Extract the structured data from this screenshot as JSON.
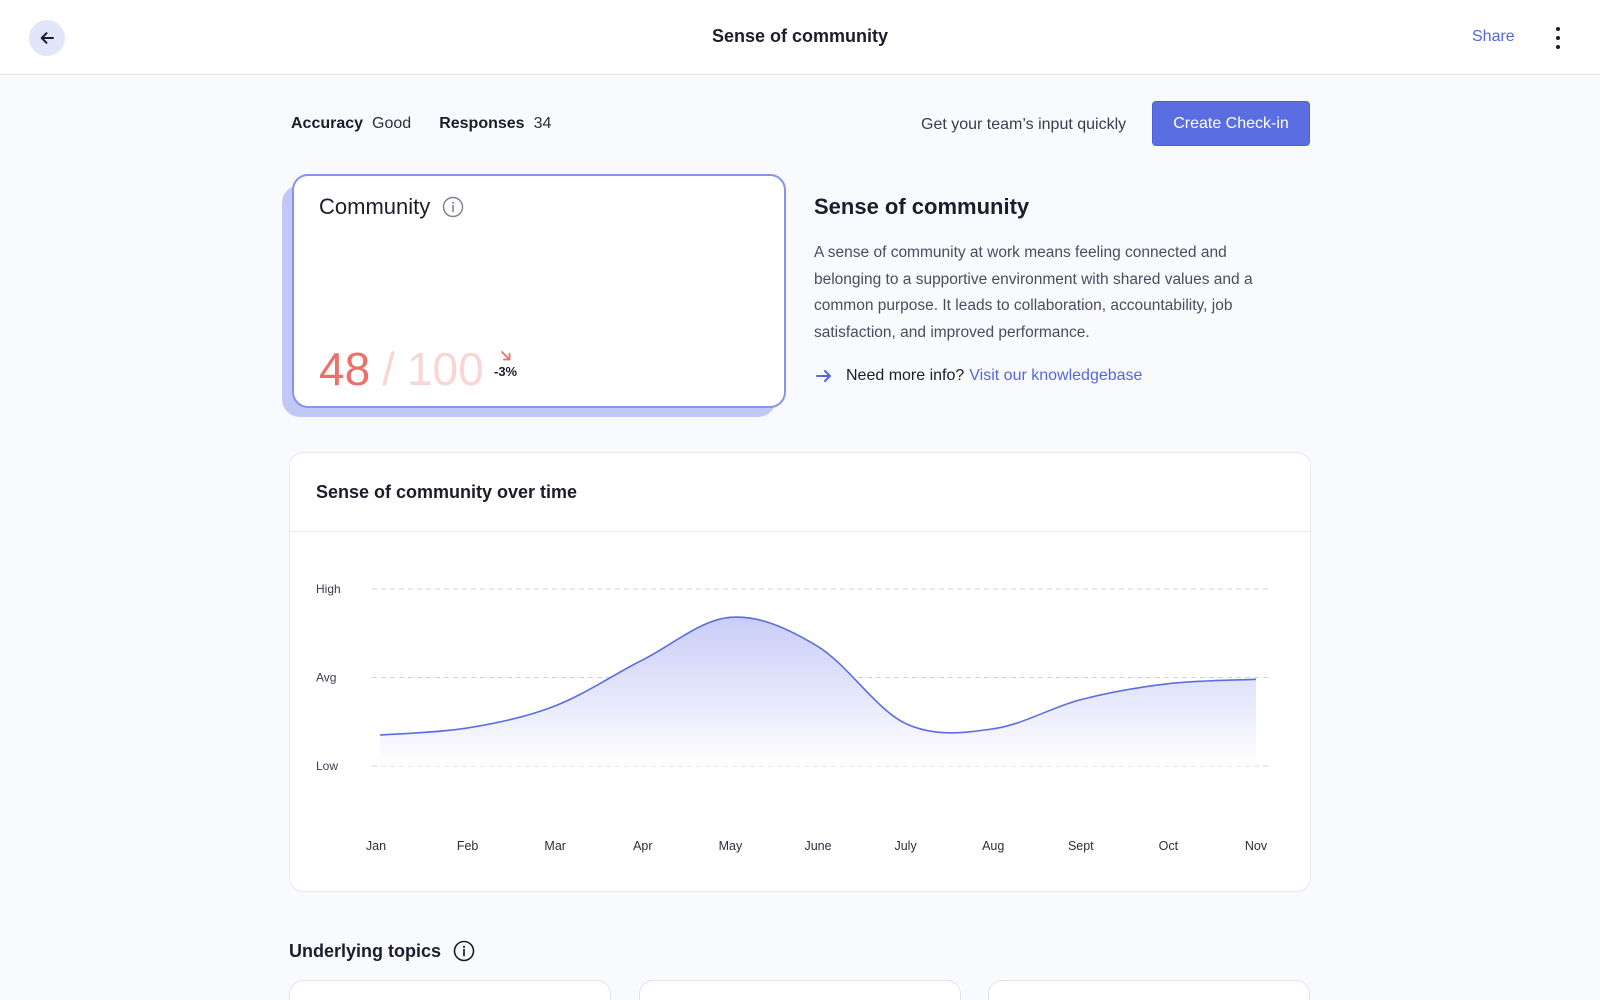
{
  "header": {
    "title": "Sense of community",
    "share_label": "Share",
    "back_icon": "arrow-left-icon",
    "menu_icon": "more-vertical-icon"
  },
  "meta": {
    "accuracy_label": "Accuracy",
    "accuracy_value": "Good",
    "responses_label": "Responses",
    "responses_value": "34"
  },
  "cta": {
    "prompt": "Get your team’s input quickly",
    "button_label": "Create Check-in"
  },
  "score_card": {
    "title": "Community",
    "score": "48",
    "separator": "/",
    "max": "100",
    "delta": "-3%",
    "delta_icon": "arrow-down-right-icon",
    "info_icon": "info-icon"
  },
  "description": {
    "title": "Sense of community",
    "body": "A sense of community at work means feeling connected and belonging to a supportive environment with shared values and a common purpose. It leads to collaboration, accountability, job satisfaction, and improved performance.",
    "more_info_prompt": "Need more info?",
    "link_label": "Visit our knowledgebase"
  },
  "chart_data": {
    "type": "area",
    "title": "Sense of community over time",
    "categories": [
      "Jan",
      "Feb",
      "Mar",
      "Apr",
      "May",
      "June",
      "July",
      "Aug",
      "Sept",
      "Oct",
      "Nov"
    ],
    "y_levels": [
      "Low",
      "Avg",
      "High"
    ],
    "values": [
      0.35,
      0.43,
      0.68,
      1.2,
      1.68,
      1.35,
      0.48,
      0.42,
      0.75,
      0.93,
      0.98
    ],
    "ylim": [
      0,
      2
    ],
    "grid": true,
    "colors": {
      "line": "#5b6ee1",
      "fill_top": "#c9cdf7",
      "fill_bottom": "#ffffff",
      "grid": "#cfd2dc"
    }
  },
  "topics": {
    "title": "Underlying topics",
    "info_icon": "info-icon"
  },
  "colors": {
    "accent": "#5b6ee1",
    "score": "#ec6f69",
    "score_faded": "#f7d6d4",
    "link": "#5467dd"
  }
}
